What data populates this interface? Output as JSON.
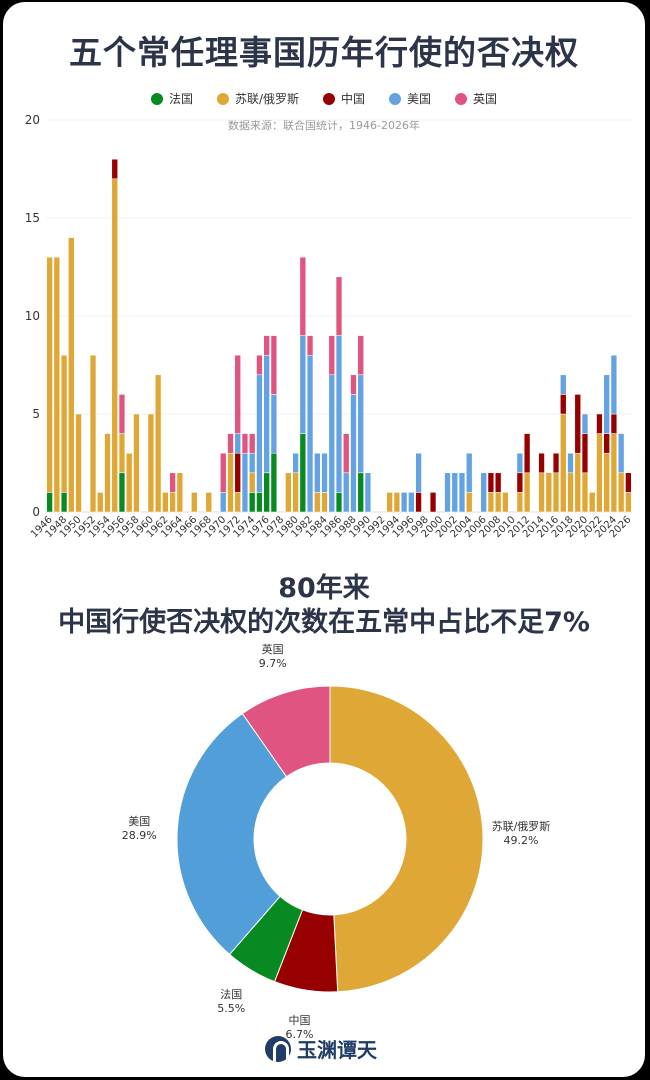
{
  "header": {
    "title": "五个常任理事国历年行使的否决权",
    "source": "数据来源：联合国统计，1946-2026年"
  },
  "legend": [
    {
      "label": "法国",
      "color": "#078a21"
    },
    {
      "label": "苏联/俄罗斯",
      "color": "#dfa735"
    },
    {
      "label": "中国",
      "color": "#960000"
    },
    {
      "label": "美国",
      "color": "#65a2e2"
    },
    {
      "label": "英国",
      "color": "#e05480"
    }
  ],
  "subtitle": {
    "line1": "80年来",
    "line2": "中国行使否决权的次数在五常中占比不足7%"
  },
  "logo": {
    "text": "玉渊谭天"
  },
  "chart_data": [
    {
      "type": "bar",
      "stacked": true,
      "title": "五个常任理事国历年行使的否决权",
      "subtitle": "数据来源：联合国统计，1946-2026年",
      "xlabel": "",
      "ylabel": "",
      "ylim": [
        0,
        20
      ],
      "yticks": [
        0,
        5,
        10,
        15,
        20
      ],
      "grid": true,
      "legend_position": "top",
      "x_tick_labels": [
        "1946",
        "1948",
        "1950",
        "1952",
        "1954",
        "1956",
        "1958",
        "1960",
        "1962",
        "1964",
        "1966",
        "1968",
        "1970",
        "1972",
        "1974",
        "1976",
        "1978",
        "1980",
        "1982",
        "1984",
        "1986",
        "1988",
        "1990",
        "1992",
        "1994",
        "1996",
        "1998",
        "2000",
        "2002",
        "2004",
        "2006",
        "2008",
        "2010",
        "2012",
        "2014",
        "2016",
        "2018",
        "2020",
        "2022",
        "2024",
        "2026"
      ],
      "categories": [
        1946,
        1947,
        1948,
        1949,
        1950,
        1951,
        1952,
        1953,
        1954,
        1955,
        1956,
        1957,
        1958,
        1959,
        1960,
        1961,
        1962,
        1963,
        1964,
        1965,
        1966,
        1967,
        1968,
        1969,
        1970,
        1971,
        1972,
        1973,
        1974,
        1975,
        1976,
        1977,
        1978,
        1979,
        1980,
        1981,
        1982,
        1983,
        1984,
        1985,
        1986,
        1987,
        1988,
        1989,
        1990,
        1991,
        1992,
        1993,
        1994,
        1995,
        1996,
        1997,
        1998,
        1999,
        2000,
        2001,
        2002,
        2003,
        2004,
        2005,
        2006,
        2007,
        2008,
        2009,
        2010,
        2011,
        2012,
        2013,
        2014,
        2015,
        2016,
        2017,
        2018,
        2019,
        2020,
        2021,
        2022,
        2023,
        2024,
        2025,
        2026
      ],
      "series": [
        {
          "name": "法国",
          "color": "#078a21",
          "values": [
            1,
            0,
            1,
            0,
            0,
            0,
            0,
            0,
            0,
            0,
            2,
            0,
            0,
            0,
            0,
            0,
            0,
            0,
            0,
            0,
            0,
            0,
            0,
            0,
            0,
            0,
            0,
            0,
            1,
            1,
            2,
            3,
            0,
            0,
            0,
            4,
            0,
            0,
            0,
            0,
            1,
            0,
            0,
            2,
            0,
            0,
            0,
            0,
            0,
            0,
            0,
            0,
            0,
            0,
            0,
            0,
            0,
            0,
            0,
            0,
            0,
            0,
            0,
            0,
            0,
            0,
            0,
            0,
            0,
            0,
            0,
            0,
            0,
            0,
            0,
            0,
            0,
            0,
            0,
            0,
            0
          ]
        },
        {
          "name": "苏联/俄罗斯",
          "color": "#dfa735",
          "values": [
            12,
            13,
            7,
            14,
            5,
            0,
            8,
            1,
            4,
            17,
            2,
            3,
            5,
            0,
            5,
            7,
            1,
            1,
            2,
            0,
            1,
            0,
            1,
            0,
            0,
            3,
            1,
            0,
            1,
            0,
            0,
            0,
            0,
            2,
            2,
            0,
            0,
            1,
            1,
            0,
            0,
            0,
            0,
            0,
            0,
            0,
            0,
            1,
            1,
            0,
            0,
            0,
            0,
            0,
            0,
            0,
            0,
            0,
            1,
            0,
            0,
            1,
            1,
            1,
            0,
            1,
            2,
            0,
            2,
            2,
            2,
            5,
            2,
            3,
            2,
            1,
            4,
            3,
            4,
            2,
            1
          ]
        },
        {
          "name": "中国",
          "color": "#960000",
          "values": [
            0,
            0,
            0,
            0,
            0,
            0,
            0,
            0,
            0,
            1,
            0,
            0,
            0,
            0,
            0,
            0,
            0,
            0,
            0,
            0,
            0,
            0,
            0,
            0,
            0,
            0,
            2,
            0,
            0,
            0,
            0,
            0,
            0,
            0,
            0,
            0,
            0,
            0,
            0,
            0,
            0,
            0,
            0,
            0,
            0,
            0,
            0,
            0,
            0,
            0,
            0,
            1,
            0,
            1,
            0,
            0,
            0,
            0,
            0,
            0,
            0,
            1,
            1,
            0,
            0,
            1,
            2,
            0,
            1,
            0,
            1,
            1,
            0,
            3,
            2,
            0,
            1,
            1,
            1,
            0,
            1
          ]
        },
        {
          "name": "美国",
          "color": "#65a2e2",
          "values": [
            0,
            0,
            0,
            0,
            0,
            0,
            0,
            0,
            0,
            0,
            0,
            0,
            0,
            0,
            0,
            0,
            0,
            0,
            0,
            0,
            0,
            0,
            0,
            0,
            1,
            0,
            1,
            3,
            1,
            6,
            6,
            3,
            0,
            0,
            1,
            5,
            8,
            2,
            2,
            7,
            8,
            2,
            6,
            5,
            2,
            0,
            0,
            0,
            0,
            1,
            1,
            2,
            0,
            0,
            0,
            2,
            2,
            2,
            2,
            0,
            2,
            0,
            0,
            0,
            0,
            1,
            0,
            0,
            0,
            0,
            0,
            1,
            1,
            0,
            1,
            0,
            0,
            3,
            3,
            2,
            0
          ]
        },
        {
          "name": "英国",
          "color": "#e05480",
          "values": [
            0,
            0,
            0,
            0,
            0,
            0,
            0,
            0,
            0,
            0,
            2,
            0,
            0,
            0,
            0,
            0,
            0,
            1,
            0,
            0,
            0,
            0,
            0,
            0,
            2,
            1,
            4,
            1,
            1,
            1,
            1,
            3,
            0,
            0,
            0,
            4,
            1,
            0,
            0,
            2,
            3,
            2,
            1,
            2,
            0,
            0,
            0,
            0,
            0,
            0,
            0,
            0,
            0,
            0,
            0,
            0,
            0,
            0,
            0,
            0,
            0,
            0,
            0,
            0,
            0,
            0,
            0,
            0,
            0,
            0,
            0,
            0,
            0,
            0,
            0,
            0,
            0,
            0,
            0,
            0,
            0
          ]
        }
      ]
    },
    {
      "type": "pie",
      "donut": true,
      "title": "80年来 中国行使否决权的次数在五常中占比不足7%",
      "categories": [
        "苏联/俄罗斯",
        "中国",
        "法国",
        "美国",
        "英国"
      ],
      "values": [
        49.2,
        6.7,
        5.5,
        28.9,
        9.7
      ],
      "labels": [
        "49.2%",
        "6.7%",
        "5.5%",
        "28.9%",
        "9.7%"
      ],
      "colors": [
        "#dea736",
        "#960000",
        "#078a21",
        "#519ed9",
        "#df5480"
      ]
    }
  ]
}
